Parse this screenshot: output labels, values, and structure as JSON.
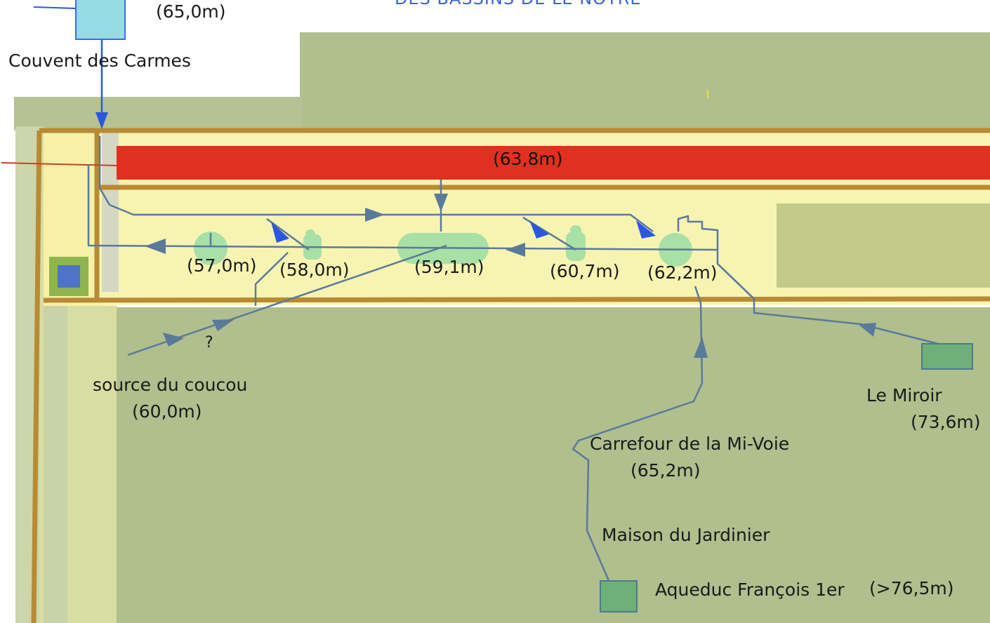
{
  "heading_fragment": "DES BASSINS DE LE NOTRE",
  "nodes": {
    "couvent": {
      "name": "Couvent des Carmes",
      "elevation": "(65,0m)"
    },
    "canal": {
      "elevation": "(63,8m)"
    },
    "basin_1": {
      "elevation": "(57,0m)"
    },
    "basin_2": {
      "elevation": "(58,0m)"
    },
    "basin_3": {
      "elevation": "(59,1m)"
    },
    "basin_4": {
      "elevation": "(60,7m)"
    },
    "basin_5": {
      "elevation": "(62,2m)"
    },
    "source_coucou": {
      "name": "source du coucou",
      "elevation": "(60,0m)",
      "unknown_mark": "?"
    },
    "miroir": {
      "name": "Le Miroir",
      "elevation": "(73,6m)"
    },
    "carrefour": {
      "name": "Carrefour de la Mi-Voie",
      "elevation": "(65,2m)"
    },
    "maison": {
      "name": "Maison du Jardinier"
    },
    "aqueduc": {
      "name": "Aqueduc François 1er",
      "elevation": "(>76,5m)"
    }
  },
  "colors": {
    "parterre": "#b1be8e",
    "alley": "#f7f4b2",
    "wall": "#b98a34",
    "canal": "#e0301f",
    "pipe": "#5a7a9a",
    "flow_arrow": "#2b57e0",
    "basin": "#a8e0a6",
    "reservoir": "#6fb07a",
    "cistern": "#97dbe4"
  }
}
